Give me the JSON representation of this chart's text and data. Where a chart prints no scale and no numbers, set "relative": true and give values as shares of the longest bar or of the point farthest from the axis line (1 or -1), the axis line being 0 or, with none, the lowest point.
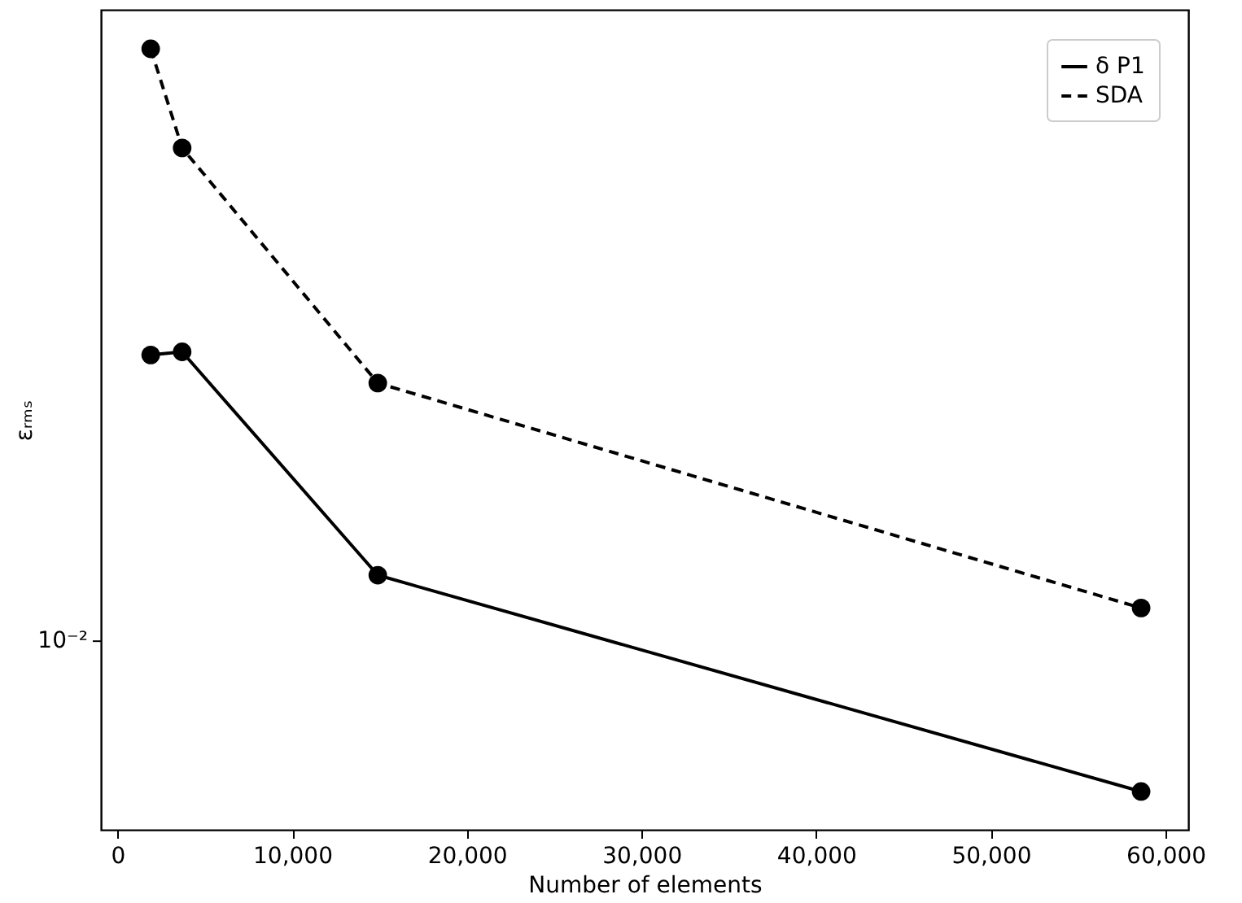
{
  "chart_data": {
    "type": "line",
    "xlabel": "Number of elements",
    "ylabel": "εᵣₘₛ",
    "relative": true,
    "x": [
      1900,
      3700,
      14900,
      58600
    ],
    "series": [
      {
        "name": "δ P1",
        "color": "#000000",
        "line_style": "solid",
        "values": [
          0.608,
          0.612,
          0.326,
          0.049
        ]
      },
      {
        "name": "SDA",
        "color": "#000000",
        "line_style": "dashed",
        "values": [
          1,
          0.873,
          0.572,
          0.284
        ]
      }
    ],
    "xlim": [
      -950,
      61300
    ],
    "xticks": [
      {
        "value": 0,
        "label": "0"
      },
      {
        "value": 10000,
        "label": "10,000"
      },
      {
        "value": 20000,
        "label": "20,000"
      },
      {
        "value": 30000,
        "label": "30,000"
      },
      {
        "value": 40000,
        "label": "40,000"
      },
      {
        "value": 50000,
        "label": "50,000"
      },
      {
        "value": 60000,
        "label": "60,000"
      }
    ],
    "annotations": [
      "10⁻²"
    ],
    "marker": "circle",
    "grid": false,
    "legend": "top right"
  }
}
